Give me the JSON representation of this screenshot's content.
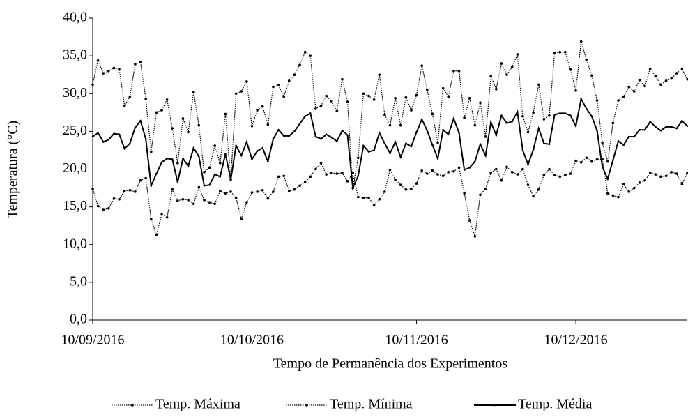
{
  "chart_data": {
    "type": "line",
    "x_label": "Tempo de Permanência dos Experimentos",
    "y_label": "Temperatura (°C)",
    "x": [
      "10/09/2016",
      "11/09/2016",
      "12/09/2016",
      "13/09/2016",
      "14/09/2016",
      "15/09/2016",
      "16/09/2016",
      "17/09/2016",
      "18/09/2016",
      "19/09/2016",
      "20/09/2016",
      "21/09/2016",
      "22/09/2016",
      "23/09/2016",
      "24/09/2016",
      "25/09/2016",
      "26/09/2016",
      "27/09/2016",
      "28/09/2016",
      "29/09/2016",
      "30/09/2016",
      "01/10/2016",
      "02/10/2016",
      "03/10/2016",
      "04/10/2016",
      "05/10/2016",
      "06/10/2016",
      "07/10/2016",
      "08/10/2016",
      "09/10/2016",
      "10/10/2016",
      "11/10/2016",
      "12/10/2016",
      "13/10/2016",
      "14/10/2016",
      "15/10/2016",
      "16/10/2016",
      "17/10/2016",
      "18/10/2016",
      "19/10/2016",
      "20/10/2016",
      "21/10/2016",
      "22/10/2016",
      "23/10/2016",
      "24/10/2016",
      "25/10/2016",
      "26/10/2016",
      "27/10/2016",
      "28/10/2016",
      "29/10/2016",
      "30/10/2016",
      "31/10/2016",
      "01/11/2016",
      "02/11/2016",
      "03/11/2016",
      "04/11/2016",
      "05/11/2016",
      "06/11/2016",
      "07/11/2016",
      "08/11/2016",
      "09/11/2016",
      "10/11/2016",
      "11/11/2016",
      "12/11/2016",
      "13/11/2016",
      "14/11/2016",
      "15/11/2016",
      "16/11/2016",
      "17/11/2016",
      "18/11/2016",
      "19/11/2016",
      "20/11/2016",
      "21/11/2016",
      "22/11/2016",
      "23/11/2016",
      "24/11/2016",
      "25/11/2016",
      "26/11/2016",
      "27/11/2016",
      "28/11/2016",
      "29/11/2016",
      "30/11/2016",
      "01/12/2016",
      "02/12/2016",
      "03/12/2016",
      "04/12/2016",
      "05/12/2016",
      "06/12/2016",
      "07/12/2016",
      "08/12/2016",
      "09/12/2016",
      "10/12/2016",
      "11/12/2016",
      "12/12/2016",
      "13/12/2016",
      "14/12/2016",
      "15/12/2016",
      "16/12/2016",
      "17/12/2016",
      "18/12/2016",
      "19/12/2016",
      "20/12/2016",
      "21/12/2016",
      "22/12/2016",
      "23/12/2016",
      "24/12/2016",
      "25/12/2016",
      "26/12/2016",
      "27/12/2016",
      "28/12/2016",
      "29/12/2016",
      "30/12/2016",
      "31/12/2016"
    ],
    "series": [
      {
        "name": "Temp. Máxima",
        "color": "#000000",
        "style": "dotted",
        "values": [
          31.2,
          34.4,
          32.7,
          33.0,
          33.4,
          33.2,
          28.4,
          29.6,
          33.9,
          34.2,
          29.3,
          22.3,
          27.5,
          27.8,
          29.2,
          25.4,
          20.8,
          26.7,
          24.9,
          30.2,
          25.8,
          19.6,
          20.2,
          23.1,
          20.8,
          27.3,
          18.6,
          30.0,
          30.3,
          31.6,
          25.7,
          27.8,
          28.3,
          25.9,
          30.9,
          31.1,
          29.6,
          31.7,
          32.5,
          33.8,
          35.5,
          35.0,
          28.0,
          28.4,
          29.7,
          29.0,
          27.7,
          31.9,
          28.9,
          17.5,
          21.5,
          30.0,
          29.7,
          29.2,
          32.5,
          27.2,
          25.8,
          29.4,
          25.8,
          29.5,
          27.8,
          29.8,
          33.7,
          30.5,
          27.3,
          23.5,
          30.7,
          29.6,
          33.0,
          33.0,
          26.8,
          29.4,
          25.8,
          28.8,
          24.3,
          32.3,
          30.6,
          34.0,
          32.5,
          33.5,
          35.2,
          27.0,
          24.9,
          27.5,
          31.2,
          26.6,
          27.1,
          35.4,
          35.5,
          35.5,
          33.2,
          30.4,
          36.9,
          34.5,
          32.4,
          29.1,
          23.5,
          21.0,
          26.1,
          29.1,
          29.6,
          30.9,
          30.3,
          31.8,
          31.0,
          33.3,
          32.3,
          31.2,
          31.7,
          32.0,
          32.7,
          33.3,
          31.9
        ]
      },
      {
        "name": "Temp. Mínima",
        "color": "#000000",
        "style": "dotted",
        "values": [
          17.4,
          15.1,
          14.6,
          14.8,
          16.1,
          16.0,
          17.1,
          17.2,
          17.0,
          18.5,
          18.8,
          13.4,
          11.3,
          14.0,
          13.6,
          17.3,
          15.8,
          16.0,
          15.9,
          15.4,
          17.6,
          15.9,
          15.6,
          15.4,
          17.1,
          16.8,
          17.0,
          16.2,
          13.4,
          15.6,
          16.9,
          17.0,
          17.2,
          16.1,
          17.0,
          19.0,
          19.1,
          17.1,
          17.3,
          17.8,
          18.3,
          19.0,
          20.0,
          20.8,
          19.3,
          19.5,
          19.4,
          19.5,
          18.4,
          19.5,
          16.3,
          16.2,
          16.2,
          15.2,
          16.0,
          17.0,
          19.9,
          18.6,
          17.9,
          17.3,
          17.4,
          18.1,
          19.8,
          19.4,
          19.8,
          19.3,
          19.1,
          19.6,
          19.7,
          20.2,
          16.8,
          13.2,
          11.1,
          16.6,
          17.4,
          19.5,
          20.0,
          18.5,
          20.3,
          19.6,
          19.3,
          20.0,
          17.9,
          16.4,
          17.3,
          19.2,
          20.0,
          19.2,
          19.0,
          19.2,
          19.4,
          21.1,
          20.9,
          21.5,
          21.0,
          21.3,
          21.3,
          16.8,
          16.5,
          16.3,
          18.0,
          17.0,
          17.5,
          18.2,
          18.5,
          19.5,
          19.3,
          19.0,
          19.1,
          19.6,
          19.4,
          18.0,
          19.5
        ]
      },
      {
        "name": "Temp. Média",
        "color": "#000000",
        "style": "solid",
        "values": [
          24.3,
          24.8,
          23.6,
          23.9,
          24.7,
          24.6,
          22.7,
          23.4,
          25.5,
          26.4,
          24.0,
          17.8,
          19.4,
          20.9,
          21.4,
          21.3,
          18.3,
          21.4,
          20.4,
          22.8,
          21.7,
          17.8,
          17.9,
          19.3,
          19.0,
          22.0,
          18.6,
          23.1,
          21.8,
          23.6,
          21.3,
          22.4,
          22.8,
          21.0,
          24.0,
          25.2,
          24.4,
          24.4,
          25.0,
          26.0,
          27.0,
          27.4,
          24.3,
          24.0,
          24.6,
          24.2,
          23.7,
          25.1,
          24.5,
          17.5,
          19.1,
          23.1,
          22.3,
          22.5,
          24.8,
          23.4,
          22.1,
          23.6,
          21.6,
          23.4,
          23.0,
          24.9,
          26.6,
          25.1,
          23.2,
          21.4,
          25.2,
          24.6,
          26.7,
          24.8,
          19.9,
          20.2,
          21.0,
          23.3,
          21.8,
          26.2,
          24.5,
          27.1,
          26.1,
          26.3,
          27.6,
          22.5,
          20.6,
          22.6,
          25.4,
          23.4,
          23.3,
          27.2,
          27.4,
          27.4,
          27.1,
          25.7,
          29.3,
          28.0,
          27.0,
          25.1,
          20.3,
          18.7,
          21.2,
          23.7,
          23.2,
          24.3,
          24.3,
          25.2,
          25.2,
          26.3,
          25.6,
          25.1,
          25.6,
          25.6,
          25.4,
          26.4,
          25.7
        ]
      }
    ],
    "xlim": [
      "10/09/2016",
      "31/12/2016"
    ],
    "xticks": [
      "10/09/2016",
      "10/10/2016",
      "10/11/2016",
      "10/12/2016"
    ],
    "ylim": [
      0,
      40
    ],
    "yticks": [
      {
        "value": 0,
        "label": "0,0"
      },
      {
        "value": 5,
        "label": "5,0"
      },
      {
        "value": 10,
        "label": "10,0"
      },
      {
        "value": 15,
        "label": "15,0"
      },
      {
        "value": 20,
        "label": "20,0"
      },
      {
        "value": 25,
        "label": "25,0"
      },
      {
        "value": 30,
        "label": "30,0"
      },
      {
        "value": 35,
        "label": "35,0"
      },
      {
        "value": 40,
        "label": "40,0"
      }
    ],
    "grid": false,
    "legend": "bottom"
  }
}
